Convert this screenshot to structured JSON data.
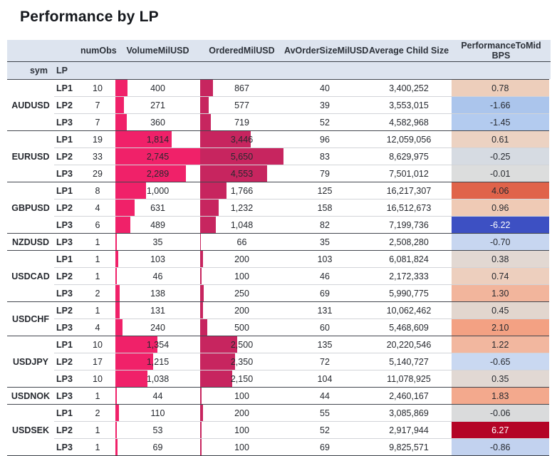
{
  "title": "Performance by LP",
  "header": {
    "sym_label": "sym",
    "lp_label": "LP",
    "numobs_label": "numObs",
    "volume_label": "VolumeMilUSD",
    "ordered_label": "OrderedMilUSD",
    "avordersize_label": "AvOrderSizeMilUSD",
    "childsize_label": "Average Child Size",
    "performance_label": "PerformanceToMid BPS"
  },
  "colors": {
    "header_bg": "#dde4ef",
    "volume_bar": "#F02169",
    "ordered_bar": "#C7255F",
    "group_border": "#42464e",
    "row_border": "#d2d4d8",
    "text": "#26292f",
    "perf_positive_strong": "#b40426",
    "perf_negative_strong": "#3d50c3"
  },
  "chart_data": {
    "type": "table",
    "title": "Performance by LP",
    "columns": [
      "sym",
      "LP",
      "numObs",
      "VolumeMilUSD",
      "OrderedMilUSD",
      "AvOrderSizeMilUSD",
      "Average Child Size",
      "PerformanceToMid BPS"
    ],
    "bar_axes": {
      "volume_max": 2745,
      "ordered_max": 5650
    },
    "heatmap_column": "PerformanceToMid BPS",
    "groups": [
      {
        "sym": "AUDUSD",
        "rows": [
          {
            "lp": "LP1",
            "numObs": 10,
            "volume": 400,
            "ordered": 867,
            "avOrderSize": 40,
            "avgChildSize": 3400252,
            "perf": 0.78,
            "perf_bg": "#edcebb",
            "perf_fg": "#26292f"
          },
          {
            "lp": "LP2",
            "numObs": 7,
            "volume": 271,
            "ordered": 577,
            "avOrderSize": 39,
            "avgChildSize": 3553015,
            "perf": -1.66,
            "perf_bg": "#abc5ec",
            "perf_fg": "#26292f"
          },
          {
            "lp": "LP3",
            "numObs": 7,
            "volume": 360,
            "ordered": 719,
            "avOrderSize": 52,
            "avgChildSize": 4582968,
            "perf": -1.45,
            "perf_bg": "#b3cbef",
            "perf_fg": "#26292f"
          }
        ]
      },
      {
        "sym": "EURUSD",
        "rows": [
          {
            "lp": "LP1",
            "numObs": 19,
            "volume": 1814,
            "ordered": 3446,
            "avOrderSize": 96,
            "avgChildSize": 12059056,
            "perf": 0.61,
            "perf_bg": "#ecd2c2",
            "perf_fg": "#26292f"
          },
          {
            "lp": "LP2",
            "numObs": 33,
            "volume": 2745,
            "ordered": 5650,
            "avOrderSize": 83,
            "avgChildSize": 8629975,
            "perf": -0.25,
            "perf_bg": "#d6dbe2",
            "perf_fg": "#26292f"
          },
          {
            "lp": "LP3",
            "numObs": 29,
            "volume": 2289,
            "ordered": 4553,
            "avOrderSize": 79,
            "avgChildSize": 7501012,
            "perf": -0.01,
            "perf_bg": "#dcdddd",
            "perf_fg": "#26292f"
          }
        ]
      },
      {
        "sym": "GBPUSD",
        "rows": [
          {
            "lp": "LP1",
            "numObs": 8,
            "volume": 1000,
            "ordered": 1766,
            "avOrderSize": 125,
            "avgChildSize": 16217307,
            "perf": 4.06,
            "perf_bg": "#e0634a",
            "perf_fg": "#26292f"
          },
          {
            "lp": "LP2",
            "numObs": 4,
            "volume": 631,
            "ordered": 1232,
            "avOrderSize": 158,
            "avgChildSize": 16512673,
            "perf": 0.96,
            "perf_bg": "#efcab5",
            "perf_fg": "#26292f"
          },
          {
            "lp": "LP3",
            "numObs": 6,
            "volume": 489,
            "ordered": 1048,
            "avOrderSize": 82,
            "avgChildSize": 7199736,
            "perf": -6.22,
            "perf_bg": "#3d50c3",
            "perf_fg": "#ffffff"
          }
        ]
      },
      {
        "sym": "NZDUSD",
        "rows": [
          {
            "lp": "LP3",
            "numObs": 1,
            "volume": 35,
            "ordered": 66,
            "avOrderSize": 35,
            "avgChildSize": 2508280,
            "perf": -0.7,
            "perf_bg": "#c7d6f0",
            "perf_fg": "#26292f"
          }
        ]
      },
      {
        "sym": "USDCAD",
        "rows": [
          {
            "lp": "LP1",
            "numObs": 1,
            "volume": 103,
            "ordered": 200,
            "avOrderSize": 103,
            "avgChildSize": 6081824,
            "perf": 0.38,
            "perf_bg": "#e2d8d2",
            "perf_fg": "#26292f"
          },
          {
            "lp": "LP2",
            "numObs": 1,
            "volume": 46,
            "ordered": 100,
            "avOrderSize": 46,
            "avgChildSize": 2172333,
            "perf": 0.74,
            "perf_bg": "#edcfbe",
            "perf_fg": "#26292f"
          },
          {
            "lp": "LP3",
            "numObs": 2,
            "volume": 138,
            "ordered": 250,
            "avOrderSize": 69,
            "avgChildSize": 5990775,
            "perf": 1.3,
            "perf_bg": "#f2b59c",
            "perf_fg": "#26292f"
          }
        ]
      },
      {
        "sym": "USDCHF",
        "rows": [
          {
            "lp": "LP2",
            "numObs": 1,
            "volume": 131,
            "ordered": 200,
            "avOrderSize": 131,
            "avgChildSize": 10062462,
            "perf": 0.45,
            "perf_bg": "#e2d6ce",
            "perf_fg": "#26292f"
          },
          {
            "lp": "LP3",
            "numObs": 4,
            "volume": 240,
            "ordered": 500,
            "avOrderSize": 60,
            "avgChildSize": 5468609,
            "perf": 2.1,
            "perf_bg": "#f3a183",
            "perf_fg": "#26292f"
          }
        ]
      },
      {
        "sym": "USDJPY",
        "rows": [
          {
            "lp": "LP1",
            "numObs": 10,
            "volume": 1354,
            "ordered": 2500,
            "avOrderSize": 135,
            "avgChildSize": 20220546,
            "perf": 1.22,
            "perf_bg": "#f2b79f",
            "perf_fg": "#26292f"
          },
          {
            "lp": "LP2",
            "numObs": 17,
            "volume": 1215,
            "ordered": 2350,
            "avOrderSize": 72,
            "avgChildSize": 5140727,
            "perf": -0.65,
            "perf_bg": "#c9d8f1",
            "perf_fg": "#26292f"
          },
          {
            "lp": "LP3",
            "numObs": 10,
            "volume": 1038,
            "ordered": 2150,
            "avOrderSize": 104,
            "avgChildSize": 11078925,
            "perf": 0.35,
            "perf_bg": "#e1d8d3",
            "perf_fg": "#26292f"
          }
        ]
      },
      {
        "sym": "USDNOK",
        "rows": [
          {
            "lp": "LP3",
            "numObs": 1,
            "volume": 44,
            "ordered": 100,
            "avOrderSize": 44,
            "avgChildSize": 2460167,
            "perf": 1.83,
            "perf_bg": "#f3a98d",
            "perf_fg": "#26292f"
          }
        ]
      },
      {
        "sym": "USDSEK",
        "rows": [
          {
            "lp": "LP1",
            "numObs": 2,
            "volume": 110,
            "ordered": 200,
            "avOrderSize": 55,
            "avgChildSize": 3085869,
            "perf": -0.06,
            "perf_bg": "#dadbdc",
            "perf_fg": "#26292f"
          },
          {
            "lp": "LP2",
            "numObs": 1,
            "volume": 53,
            "ordered": 100,
            "avOrderSize": 52,
            "avgChildSize": 2917944,
            "perf": 6.27,
            "perf_bg": "#b40426",
            "perf_fg": "#ffffff"
          },
          {
            "lp": "LP3",
            "numObs": 1,
            "volume": 69,
            "ordered": 100,
            "avOrderSize": 69,
            "avgChildSize": 9825571,
            "perf": -0.86,
            "perf_bg": "#c2d2ef",
            "perf_fg": "#26292f"
          }
        ]
      }
    ]
  }
}
